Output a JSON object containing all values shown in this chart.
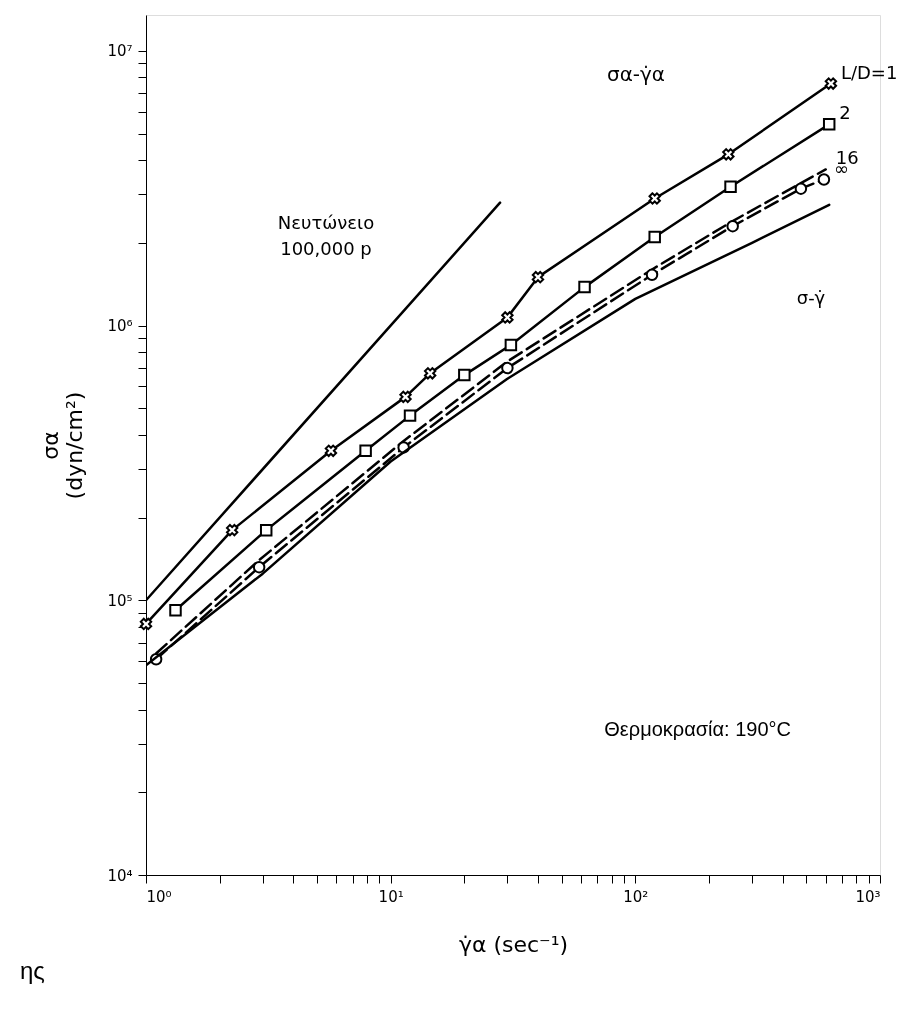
{
  "chart_data": {
    "type": "line",
    "xlabel": "γ̇α (sec⁻¹)",
    "ylabel": "σα (dyn/cm²)",
    "log": "xy",
    "grid": false,
    "xlim": [
      1,
      1000
    ],
    "ylim": [
      10000,
      13500000
    ],
    "xticks": [
      {
        "value": 1,
        "label": "10⁰"
      },
      {
        "value": 2,
        "label": null
      },
      {
        "value": 3,
        "label": null
      },
      {
        "value": 4,
        "label": null
      },
      {
        "value": 5,
        "label": null
      },
      {
        "value": 6,
        "label": null
      },
      {
        "value": 7,
        "label": null
      },
      {
        "value": 8,
        "label": null
      },
      {
        "value": 9,
        "label": null
      },
      {
        "value": 10,
        "label": "10¹"
      },
      {
        "value": 20,
        "label": null
      },
      {
        "value": 30,
        "label": null
      },
      {
        "value": 40,
        "label": null
      },
      {
        "value": 50,
        "label": null
      },
      {
        "value": 60,
        "label": null
      },
      {
        "value": 70,
        "label": null
      },
      {
        "value": 80,
        "label": null
      },
      {
        "value": 90,
        "label": null
      },
      {
        "value": 100,
        "label": "10²"
      },
      {
        "value": 200,
        "label": null
      },
      {
        "value": 300,
        "label": null
      },
      {
        "value": 400,
        "label": null
      },
      {
        "value": 500,
        "label": null
      },
      {
        "value": 600,
        "label": null
      },
      {
        "value": 700,
        "label": null
      },
      {
        "value": 800,
        "label": null
      },
      {
        "value": 900,
        "label": null
      },
      {
        "value": 1000,
        "label": "10³"
      }
    ],
    "yticks": [
      {
        "value": 10000,
        "label": "10⁴"
      },
      {
        "value": 20000,
        "label": null
      },
      {
        "value": 30000,
        "label": null
      },
      {
        "value": 40000,
        "label": null
      },
      {
        "value": 50000,
        "label": null
      },
      {
        "value": 60000,
        "label": null
      },
      {
        "value": 70000,
        "label": null
      },
      {
        "value": 80000,
        "label": null
      },
      {
        "value": 90000,
        "label": null
      },
      {
        "value": 100000,
        "label": "10⁵"
      },
      {
        "value": 200000,
        "label": null
      },
      {
        "value": 300000,
        "label": null
      },
      {
        "value": 400000,
        "label": null
      },
      {
        "value": 500000,
        "label": null
      },
      {
        "value": 600000,
        "label": null
      },
      {
        "value": 700000,
        "label": null
      },
      {
        "value": 800000,
        "label": null
      },
      {
        "value": 900000,
        "label": null
      },
      {
        "value": 1000000,
        "label": "10⁶"
      },
      {
        "value": 2000000,
        "label": null
      },
      {
        "value": 3000000,
        "label": null
      },
      {
        "value": 4000000,
        "label": null
      },
      {
        "value": 5000000,
        "label": null
      },
      {
        "value": 6000000,
        "label": null
      },
      {
        "value": 7000000,
        "label": null
      },
      {
        "value": 8000000,
        "label": null
      },
      {
        "value": 9000000,
        "label": null
      },
      {
        "value": 10000000,
        "label": "10⁷"
      }
    ],
    "series": [
      {
        "color": "#000000",
        "line_style": "solid",
        "marker": "none",
        "x": [
          1,
          28
        ],
        "values": [
          100000,
          2800000
        ]
      },
      {
        "name": "L/D=1",
        "color": "#000000",
        "line_style": "solid",
        "marker": "cross",
        "x": [
          1,
          2.25,
          5.7,
          11.5,
          14.5,
          30,
          40,
          120,
          240,
          630
        ],
        "values": [
          82000,
          180000,
          350000,
          550000,
          670000,
          1070000,
          1500000,
          2900000,
          4200000,
          7600000
        ]
      },
      {
        "name": "2",
        "color": "#000000",
        "line_style": "solid",
        "marker": "square",
        "x": [
          1.32,
          3.1,
          7.9,
          12,
          20,
          31,
          62,
          120,
          245,
          620
        ],
        "values": [
          92000,
          180000,
          350000,
          470000,
          660000,
          850000,
          1380000,
          2100000,
          3200000,
          5400000
        ]
      },
      {
        "name": "16",
        "color": "#000000",
        "line_style": "dashed",
        "marker": "none",
        "x": [
          1.1,
          2.9,
          11.3,
          30,
          117,
          250,
          475,
          600
        ],
        "values": [
          64000,
          140000,
          380000,
          740000,
          1600000,
          2400000,
          3300000,
          3700000
        ]
      },
      {
        "name": "∞",
        "color": "#000000",
        "line_style": "dashed",
        "marker": "circle",
        "x": [
          1.1,
          2.9,
          11.3,
          30,
          117,
          250,
          475,
          590
        ],
        "values": [
          61000,
          132000,
          360000,
          700000,
          1530000,
          2300000,
          3150000,
          3400000
        ]
      },
      {
        "color": "#000000",
        "line_style": "solid",
        "marker": "none",
        "x": [
          1,
          3,
          10,
          30,
          100,
          300,
          620
        ],
        "values": [
          58000,
          125000,
          320000,
          640000,
          1250000,
          2000000,
          2750000
        ]
      }
    ],
    "annotations": [
      "Νευτώνειο\n100,000 p",
      "σα-γ̇α",
      "σ-γ̇",
      "Θερμοκρασία: 190°C",
      "ης"
    ]
  }
}
